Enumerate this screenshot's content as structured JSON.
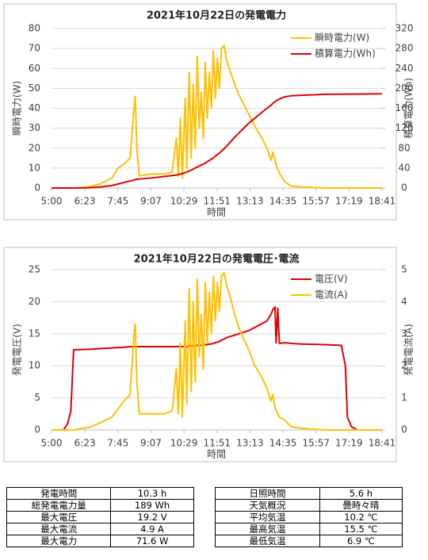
{
  "chart_data": [
    {
      "type": "line",
      "title": "2021年10月22日の発電電力",
      "x_label": "時間",
      "y_label": "瞬時電力(W)",
      "y2_label": "積算電力(Wh)",
      "legend": "upper right",
      "grid": true,
      "xlim": [
        300,
        1121
      ],
      "xticks": [
        {
          "value": 300,
          "label": "5:00"
        },
        {
          "value": 383,
          "label": "6:23"
        },
        {
          "value": 465,
          "label": "7:45"
        },
        {
          "value": 547,
          "label": "9:07"
        },
        {
          "value": 629,
          "label": "10:29"
        },
        {
          "value": 711,
          "label": "11:51"
        },
        {
          "value": 793,
          "label": "13:13"
        },
        {
          "value": 875,
          "label": "14:35"
        },
        {
          "value": 957,
          "label": "15:57"
        },
        {
          "value": 1039,
          "label": "17:19"
        },
        {
          "value": 1121,
          "label": "18:41"
        }
      ],
      "ylim": [
        0,
        80
      ],
      "yticks": [
        0,
        10,
        20,
        30,
        40,
        50,
        60,
        70,
        80
      ],
      "y2lim": [
        0,
        320
      ],
      "y2ticks": [
        0,
        40,
        80,
        120,
        160,
        200,
        240,
        280,
        320
      ],
      "x": [
        300,
        360,
        390,
        420,
        450,
        465,
        480,
        495,
        505,
        508,
        512,
        518,
        547,
        580,
        600,
        610,
        615,
        620,
        625,
        632,
        636,
        642,
        647,
        652,
        657,
        662,
        667,
        672,
        677,
        682,
        687,
        692,
        697,
        702,
        707,
        712,
        717,
        722,
        729,
        735,
        745,
        755,
        765,
        775,
        790,
        805,
        820,
        835,
        845,
        850,
        860,
        870,
        880,
        895,
        920,
        980,
        1050,
        1121
      ],
      "series": [
        {
          "name": "瞬時電力(W)",
          "color": "#ffc000",
          "values": [
            0,
            0,
            0.5,
            2,
            5,
            10,
            12,
            15,
            40,
            46,
            20,
            6,
            7,
            7,
            8,
            25,
            6,
            35,
            5,
            45,
            10,
            58,
            15,
            52,
            20,
            66,
            30,
            48,
            25,
            63,
            35,
            58,
            40,
            69,
            45,
            65,
            50,
            70,
            71.6,
            64,
            58,
            52,
            47,
            43,
            37,
            31,
            26,
            20,
            14,
            18,
            10,
            6,
            3,
            1,
            0.5,
            0,
            0,
            0
          ]
        },
        {
          "name": "積算電力(Wh)",
          "color": "#e00000",
          "axis": "y2",
          "values": [
            0,
            0,
            0.3,
            2,
            5,
            8,
            11,
            14,
            16,
            17,
            17.5,
            18,
            20,
            23,
            25,
            26,
            27,
            28,
            29,
            31,
            32,
            34,
            36,
            38,
            40,
            42,
            44,
            46,
            48,
            50,
            53,
            55,
            58,
            60,
            64,
            67,
            70,
            74,
            79,
            84,
            93,
            102,
            110,
            118,
            130,
            140,
            150,
            160,
            166,
            170,
            176,
            180,
            183,
            185,
            186,
            188,
            188.5,
            189
          ]
        }
      ]
    },
    {
      "type": "line",
      "title": "2021年10月22日の発電電圧･電流",
      "x_label": "時間",
      "y_label": "発電電圧(V)",
      "y2_label": "発電電流(A)",
      "legend": "upper right",
      "grid": true,
      "xlim": [
        300,
        1121
      ],
      "xticks": [
        {
          "value": 300,
          "label": "5:00"
        },
        {
          "value": 383,
          "label": "6:23"
        },
        {
          "value": 465,
          "label": "7:45"
        },
        {
          "value": 547,
          "label": "9:07"
        },
        {
          "value": 629,
          "label": "10:29"
        },
        {
          "value": 711,
          "label": "11:51"
        },
        {
          "value": 793,
          "label": "13:13"
        },
        {
          "value": 875,
          "label": "14:35"
        },
        {
          "value": 957,
          "label": "15:57"
        },
        {
          "value": 1039,
          "label": "17:19"
        },
        {
          "value": 1121,
          "label": "18:41"
        }
      ],
      "ylim": [
        0,
        25
      ],
      "yticks": [
        0,
        5,
        10,
        15,
        20,
        25
      ],
      "y2lim": [
        0,
        5
      ],
      "y2ticks": [
        0,
        1,
        2,
        3,
        4,
        5
      ],
      "x": [
        300,
        330,
        340,
        348,
        355,
        400,
        450,
        480,
        495,
        505,
        508,
        512,
        518,
        547,
        580,
        600,
        610,
        615,
        620,
        625,
        632,
        636,
        642,
        647,
        652,
        657,
        662,
        667,
        672,
        677,
        682,
        687,
        692,
        697,
        702,
        707,
        712,
        717,
        722,
        729,
        735,
        745,
        755,
        765,
        775,
        790,
        805,
        820,
        835,
        845,
        850,
        855,
        858,
        862,
        866,
        880,
        895,
        920,
        980,
        1020,
        1030,
        1035,
        1045,
        1060,
        1121
      ],
      "series": [
        {
          "name": "電圧(V)",
          "color": "#e00000",
          "values": [
            0,
            0,
            1,
            3,
            12.5,
            12.6,
            12.8,
            12.9,
            13,
            13,
            13,
            13,
            13,
            13,
            13,
            13,
            13,
            13,
            13,
            13,
            13,
            13,
            13.1,
            13.1,
            13.1,
            13.1,
            13.2,
            13.2,
            13.2,
            13.2,
            13.3,
            13.3,
            13.4,
            13.4,
            13.5,
            13.6,
            13.7,
            13.8,
            14,
            14.2,
            14.4,
            14.6,
            14.8,
            15,
            15.2,
            15.5,
            16,
            16.5,
            17,
            18,
            18.8,
            19.2,
            13.6,
            19,
            13.5,
            13.6,
            13.5,
            13.4,
            13.3,
            13.2,
            10,
            2,
            0.5,
            0,
            0
          ]
        },
        {
          "name": "電流(A)",
          "color": "#ffc000",
          "axis": "y2",
          "values": [
            0,
            0,
            0,
            0,
            0,
            0.1,
            0.4,
            0.9,
            1.1,
            3,
            3.3,
            1.5,
            0.5,
            0.5,
            0.5,
            0.6,
            1.9,
            0.5,
            2.7,
            0.4,
            3.4,
            0.8,
            4.4,
            1.2,
            4,
            1.5,
            4.7,
            2.3,
            3.6,
            1.9,
            4.6,
            2.7,
            4.3,
            3,
            4.8,
            3.4,
            4.6,
            3.7,
            4.8,
            4.9,
            4.5,
            4.1,
            3.6,
            3.2,
            2.9,
            2.5,
            2,
            1.7,
            1.3,
            0.9,
            1.1,
            0.7,
            0.6,
            0.5,
            0.4,
            0.3,
            0.1,
            0.05,
            0,
            0,
            0,
            0,
            0,
            0,
            0
          ]
        }
      ]
    }
  ],
  "table": {
    "rows": [
      [
        "発電時間",
        "10.3 h",
        "日照時間",
        "5.6 h"
      ],
      [
        "総発電電力量",
        "189 Wh",
        "天気概況",
        "曇時々晴"
      ],
      [
        "最大電圧",
        "19.2 V",
        "平均気温",
        "10.2 ℃"
      ],
      [
        "最大電流",
        "4.9 A",
        "最高気温",
        "15.5 ℃"
      ],
      [
        "最大電力",
        "71.6 W",
        "最低気温",
        "6.9 ℃"
      ]
    ]
  }
}
